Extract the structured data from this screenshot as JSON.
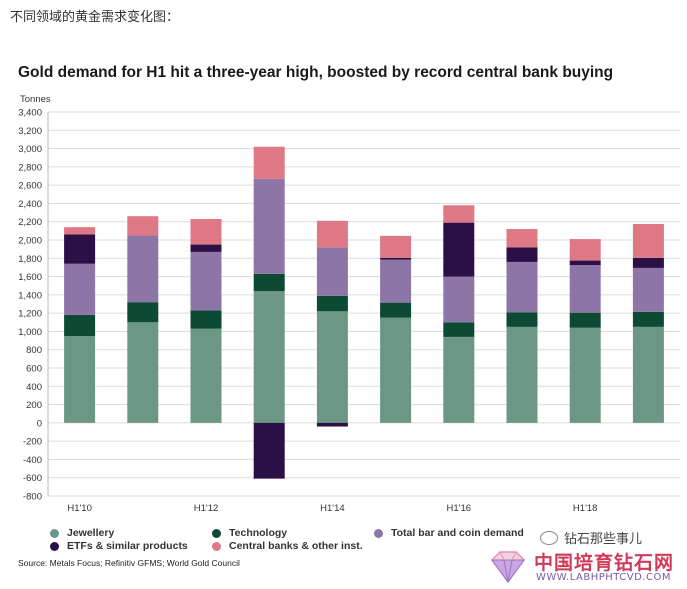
{
  "caption": "不同领域的黄金需求变化图：",
  "chart_data": {
    "type": "bar",
    "stacked": true,
    "title": "Gold demand for H1 hit a three-year high, boosted by record central bank buying",
    "ylabel": "Tonnes",
    "ylim": [
      -800,
      3400
    ],
    "yticks": [
      "3,400",
      "3,200",
      "3,000",
      "2,800",
      "2,600",
      "2,400",
      "2,200",
      "2,000",
      "1,800",
      "1,600",
      "1,400",
      "1,200",
      "1,000",
      "800",
      "600",
      "400",
      "200",
      "0",
      "-200",
      "-400",
      "-600",
      "-800"
    ],
    "ytick_values": [
      3400,
      3200,
      3000,
      2800,
      2600,
      2400,
      2200,
      2000,
      1800,
      1600,
      1400,
      1200,
      1000,
      800,
      600,
      400,
      200,
      0,
      -200,
      -400,
      -600,
      -800
    ],
    "grid": true,
    "categories": [
      "H1'10",
      "H1'11",
      "H1'12",
      "H1'13",
      "H1'14",
      "H1'15",
      "H1'16",
      "H1'17",
      "H1'18",
      "H1'19"
    ],
    "x_tick_labels": [
      "H1'10",
      "",
      "H1'12",
      "",
      "H1'14",
      "",
      "H1'16",
      "",
      "H1'18",
      ""
    ],
    "series": [
      {
        "name": "Jewellery",
        "color": "#6b9784",
        "values": [
          950,
          1100,
          1030,
          1440,
          1220,
          1150,
          940,
          1050,
          1040,
          1050
        ]
      },
      {
        "name": "Technology",
        "color": "#0c4a33",
        "values": [
          230,
          220,
          200,
          190,
          170,
          165,
          160,
          160,
          165,
          165
        ]
      },
      {
        "name": "Total bar and coin demand",
        "color": "#8d76a7",
        "values": [
          560,
          730,
          640,
          1040,
          530,
          470,
          500,
          550,
          520,
          480
        ]
      },
      {
        "name": "ETFs & similar products",
        "color": "#2b0f45",
        "values": [
          320,
          0,
          80,
          -610,
          -40,
          20,
          590,
          160,
          50,
          110
        ]
      },
      {
        "name": "Central banks & other inst.",
        "color": "#dd7884",
        "values": [
          80,
          210,
          280,
          350,
          290,
          240,
          190,
          200,
          235,
          370
        ]
      }
    ],
    "legend_position": "bottom"
  },
  "source": "Source: Metals Focus; Refinitiv GFMS; World Gold Council",
  "watermark": {
    "wechat_label": "钻石那些事儿",
    "site_name": "中国培育钻石网",
    "site_url": "WWW.LABHPHTCVD.COM"
  }
}
